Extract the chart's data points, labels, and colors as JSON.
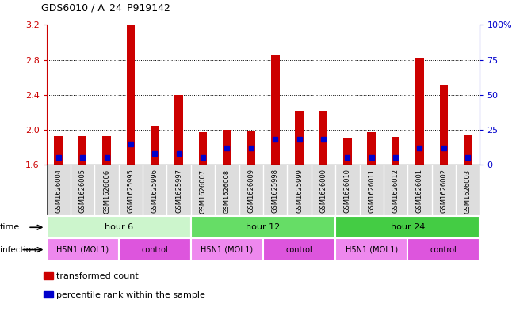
{
  "title": "GDS6010 / A_24_P919142",
  "samples": [
    "GSM1626004",
    "GSM1626005",
    "GSM1626006",
    "GSM1625995",
    "GSM1625996",
    "GSM1625997",
    "GSM1626007",
    "GSM1626008",
    "GSM1626009",
    "GSM1625998",
    "GSM1625999",
    "GSM1626000",
    "GSM1626010",
    "GSM1626011",
    "GSM1626012",
    "GSM1626001",
    "GSM1626002",
    "GSM1626003"
  ],
  "red_values": [
    1.93,
    1.93,
    1.93,
    3.2,
    2.05,
    2.4,
    1.97,
    2.0,
    1.98,
    2.85,
    2.22,
    2.22,
    1.9,
    1.97,
    1.92,
    2.82,
    2.52,
    1.95
  ],
  "blue_values": [
    5,
    5,
    5,
    15,
    8,
    8,
    5,
    12,
    12,
    18,
    18,
    18,
    5,
    5,
    5,
    12,
    12,
    5
  ],
  "ylim": [
    1.6,
    3.2
  ],
  "yticks": [
    1.6,
    2.0,
    2.4,
    2.8,
    3.2
  ],
  "y2ticks_labels": [
    "0",
    "25",
    "50",
    "75",
    "100%"
  ],
  "y2ticks_vals": [
    1.6,
    2.0,
    2.4,
    2.8,
    3.2
  ],
  "groups": [
    {
      "label": "hour 6",
      "start": 0,
      "end": 6,
      "color": "#ccf5cc"
    },
    {
      "label": "hour 12",
      "start": 6,
      "end": 12,
      "color": "#66dd66"
    },
    {
      "label": "hour 24",
      "start": 12,
      "end": 18,
      "color": "#44cc44"
    }
  ],
  "infection_groups": [
    {
      "label": "H5N1 (MOI 1)",
      "start": 0,
      "end": 3,
      "color": "#ee88ee"
    },
    {
      "label": "control",
      "start": 3,
      "end": 6,
      "color": "#dd55dd"
    },
    {
      "label": "H5N1 (MOI 1)",
      "start": 6,
      "end": 9,
      "color": "#ee88ee"
    },
    {
      "label": "control",
      "start": 9,
      "end": 12,
      "color": "#dd55dd"
    },
    {
      "label": "H5N1 (MOI 1)",
      "start": 12,
      "end": 15,
      "color": "#ee88ee"
    },
    {
      "label": "control",
      "start": 15,
      "end": 18,
      "color": "#dd55dd"
    }
  ],
  "bar_color": "#cc0000",
  "dot_color": "#0000cc",
  "bar_width": 0.35,
  "base_value": 1.6,
  "background_color": "#ffffff",
  "tick_label_color_left": "#cc0000",
  "tick_label_color_right": "#0000cc",
  "sample_box_color": "#dddddd"
}
